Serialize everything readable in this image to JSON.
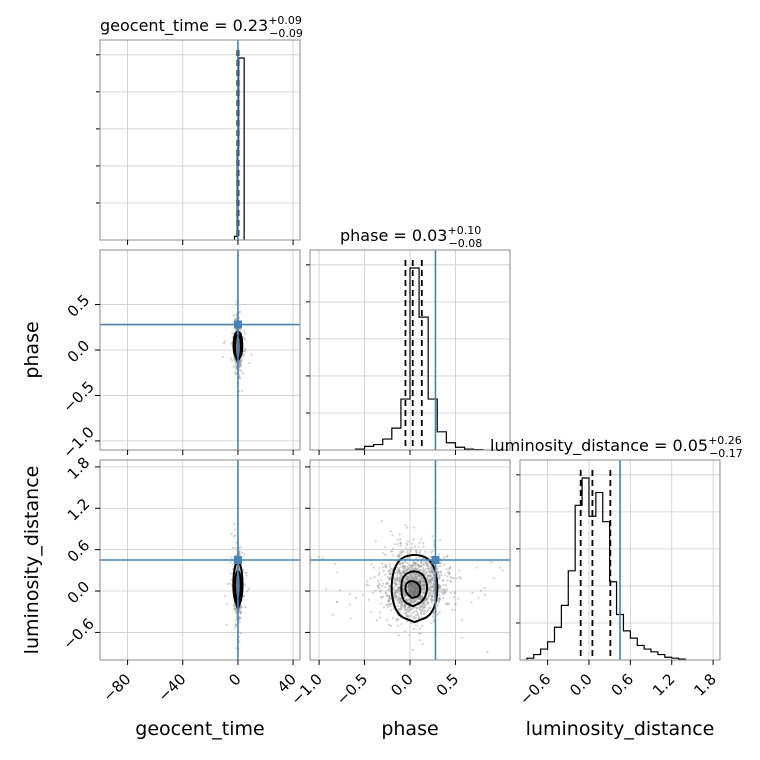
{
  "chart_data": {
    "type": "corner",
    "parameters": [
      "geocent_time",
      "phase",
      "luminosity_distance"
    ],
    "axis_labels": {
      "geocent_time": "geocent_time",
      "phase": "phase",
      "luminosity_distance": "luminosity_distance"
    },
    "ranges": {
      "geocent_time": [
        -100,
        45
      ],
      "phase": [
        -1.1,
        1.1
      ],
      "luminosity_distance": [
        -1.0,
        1.9
      ]
    },
    "ticks": {
      "geocent_time": [
        -80,
        -40,
        0,
        40
      ],
      "phase": [
        -1.0,
        -0.5,
        0.0,
        0.5
      ],
      "luminosity_distance": [
        -0.6,
        0.0,
        0.6,
        1.2,
        1.8
      ]
    },
    "tick_labels": {
      "geocent_time": [
        "−80",
        "−40",
        "0",
        "40"
      ],
      "phase": [
        "−1.0",
        "−0.5",
        "0.0",
        "0.5"
      ],
      "luminosity_distance": [
        "−0.6",
        "0.0",
        "0.6",
        "1.2",
        "1.8"
      ]
    },
    "truths": {
      "geocent_time": 0.0,
      "phase": 0.28,
      "luminosity_distance": 0.45
    },
    "titles": [
      {
        "param": "geocent_time",
        "text": "geocent_time = 0.23",
        "plus": "+0.09",
        "minus": "−0.09",
        "quantiles": [
          0.14,
          0.23,
          0.32
        ]
      },
      {
        "param": "phase",
        "text": "phase = 0.03",
        "plus": "+0.10",
        "minus": "−0.08",
        "quantiles": [
          -0.05,
          0.03,
          0.13
        ]
      },
      {
        "param": "luminosity_distance",
        "text": "luminosity_distance = 0.05",
        "plus": "+0.26",
        "minus": "−0.17",
        "quantiles": [
          -0.12,
          0.05,
          0.31
        ]
      }
    ],
    "histograms": {
      "geocent_time": {
        "edges": [
          -2.5,
          -0.5,
          0.5,
          2.5,
          4.5
        ],
        "counts": [
          0.02,
          0.5,
          1.0,
          1.0
        ]
      },
      "phase": {
        "edges": [
          -0.6,
          -0.5,
          -0.4,
          -0.3,
          -0.2,
          -0.1,
          0.0,
          0.1,
          0.2,
          0.3,
          0.4,
          0.5,
          0.6,
          0.7,
          0.8
        ],
        "counts": [
          0.005,
          0.02,
          0.03,
          0.06,
          0.12,
          0.28,
          1.0,
          0.73,
          0.28,
          0.1,
          0.04,
          0.015,
          0.005,
          0.002
        ]
      },
      "luminosity_distance": {
        "edges": [
          -0.9,
          -0.8,
          -0.7,
          -0.6,
          -0.5,
          -0.4,
          -0.3,
          -0.2,
          -0.1,
          0.0,
          0.1,
          0.2,
          0.3,
          0.4,
          0.5,
          0.6,
          0.7,
          0.8,
          0.9,
          1.0,
          1.1,
          1.2,
          1.3,
          1.4
        ],
        "counts": [
          0.01,
          0.03,
          0.06,
          0.1,
          0.18,
          0.3,
          0.49,
          0.85,
          1.0,
          0.79,
          0.92,
          0.76,
          0.43,
          0.25,
          0.16,
          0.12,
          0.08,
          0.06,
          0.045,
          0.03,
          0.015,
          0.01,
          0.005
        ]
      }
    },
    "pairs": [
      {
        "x": "geocent_time",
        "y": "phase",
        "contours": [
          [
            [
              -0.3,
              -0.12
            ],
            [
              1.6,
              -0.08
            ],
            [
              2.4,
              0.03
            ],
            [
              1.6,
              0.14
            ],
            [
              0,
              0.18
            ],
            [
              -1.6,
              0.14
            ],
            [
              -2.4,
              0.03
            ],
            [
              -1.6,
              -0.08
            ]
          ],
          [
            [
              0,
              -0.1
            ],
            [
              2.3,
              -0.07
            ],
            [
              3.4,
              0.03
            ],
            [
              2.8,
              0.14
            ],
            [
              1.4,
              0.2
            ],
            [
              -1.4,
              0.2
            ],
            [
              -2.8,
              0.14
            ],
            [
              -3.4,
              0.03
            ],
            [
              -2.3,
              -0.07
            ]
          ]
        ],
        "core": [
          [
            -1.2,
            -0.05
          ],
          [
            1.4,
            -0.05
          ],
          [
            1.4,
            0.1
          ],
          [
            -1.2,
            0.1
          ]
        ]
      },
      {
        "x": "geocent_time",
        "y": "luminosity_distance",
        "contours": [
          [
            [
              -0.4,
              -0.18
            ],
            [
              1.6,
              -0.08
            ],
            [
              2.2,
              0.08
            ],
            [
              1.6,
              0.25
            ],
            [
              0,
              0.3
            ],
            [
              -1.6,
              0.25
            ],
            [
              -2.2,
              0.08
            ],
            [
              -1.6,
              -0.08
            ]
          ],
          [
            [
              0,
              -0.25
            ],
            [
              2.6,
              -0.12
            ],
            [
              3.6,
              0.08
            ],
            [
              2.6,
              0.35
            ],
            [
              0,
              0.44
            ],
            [
              -2.6,
              0.35
            ],
            [
              -3.6,
              0.08
            ],
            [
              -2.6,
              -0.12
            ]
          ]
        ],
        "core": [
          [
            -1,
            -0.1
          ],
          [
            1.2,
            -0.1
          ],
          [
            1.2,
            0.2
          ],
          [
            -1,
            0.2
          ]
        ]
      },
      {
        "x": "phase",
        "y": "luminosity_distance",
        "contours": [
          [
            [
              0.02,
              -0.1
            ],
            [
              0.1,
              -0.08
            ],
            [
              0.12,
              0.05
            ],
            [
              0.07,
              0.13
            ],
            [
              0.0,
              0.15
            ],
            [
              -0.05,
              0.1
            ],
            [
              -0.05,
              -0.02
            ]
          ],
          [
            [
              0.03,
              -0.22
            ],
            [
              0.15,
              -0.15
            ],
            [
              0.2,
              0.05
            ],
            [
              0.15,
              0.25
            ],
            [
              0.03,
              0.3
            ],
            [
              -0.08,
              0.22
            ],
            [
              -0.1,
              0.05
            ],
            [
              -0.08,
              -0.15
            ]
          ],
          [
            [
              0.05,
              -0.45
            ],
            [
              0.25,
              -0.35
            ],
            [
              0.32,
              0.05
            ],
            [
              0.25,
              0.45
            ],
            [
              0.05,
              0.55
            ],
            [
              -0.15,
              0.45
            ],
            [
              -0.22,
              0.05
            ],
            [
              -0.15,
              -0.35
            ]
          ]
        ],
        "core": [
          [
            -0.02,
            -0.08
          ],
          [
            0.12,
            -0.08
          ],
          [
            0.12,
            0.15
          ],
          [
            -0.02,
            0.15
          ]
        ]
      }
    ]
  }
}
